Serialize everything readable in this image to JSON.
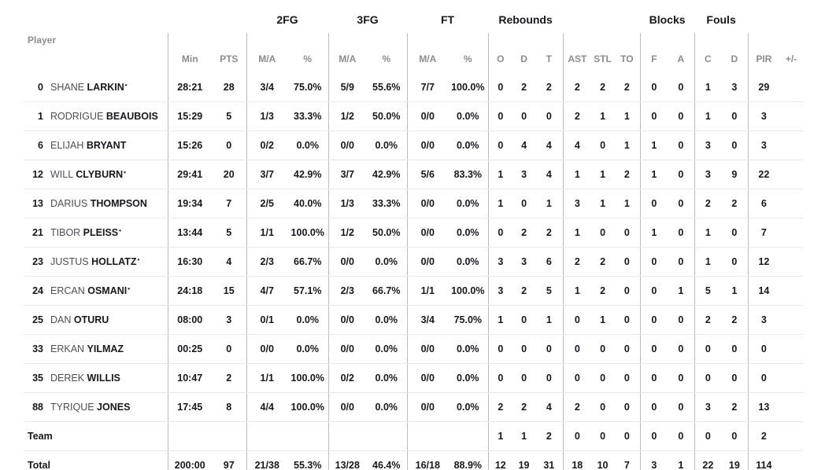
{
  "header": {
    "player_label": "Player",
    "groups": {
      "fg2": "2FG",
      "fg3": "3FG",
      "ft": "FT",
      "rebounds": "Rebounds",
      "blocks": "Blocks",
      "fouls": "Fouls"
    },
    "columns": [
      "Min",
      "PTS",
      "M/A",
      "%",
      "M/A",
      "%",
      "M/A",
      "%",
      "O",
      "D",
      "T",
      "AST",
      "STL",
      "TO",
      "F",
      "A",
      "C",
      "D",
      "PIR",
      "+/-"
    ]
  },
  "starter_glyph": "•",
  "rows": [
    {
      "number": "0",
      "first": "SHANE",
      "last": "LARKIN",
      "starter": true,
      "min": "28:21",
      "pts": "28",
      "fg2_ma": "3/4",
      "fg2_pct": "75.0%",
      "fg3_ma": "5/9",
      "fg3_pct": "55.6%",
      "ft_ma": "7/7",
      "ft_pct": "100.0%",
      "reb_o": "0",
      "reb_d": "2",
      "reb_t": "2",
      "ast": "2",
      "stl": "2",
      "to": "2",
      "blk_f": "0",
      "blk_a": "0",
      "foul_c": "1",
      "foul_d": "3",
      "pir": "29",
      "plus_minus": ""
    },
    {
      "number": "1",
      "first": "RODRIGUE",
      "last": "BEAUBOIS",
      "starter": false,
      "min": "15:29",
      "pts": "5",
      "fg2_ma": "1/3",
      "fg2_pct": "33.3%",
      "fg3_ma": "1/2",
      "fg3_pct": "50.0%",
      "ft_ma": "0/0",
      "ft_pct": "0.0%",
      "reb_o": "0",
      "reb_d": "0",
      "reb_t": "0",
      "ast": "2",
      "stl": "1",
      "to": "1",
      "blk_f": "0",
      "blk_a": "0",
      "foul_c": "1",
      "foul_d": "0",
      "pir": "3",
      "plus_minus": ""
    },
    {
      "number": "6",
      "first": "ELIJAH",
      "last": "BRYANT",
      "starter": false,
      "min": "15:26",
      "pts": "0",
      "fg2_ma": "0/2",
      "fg2_pct": "0.0%",
      "fg3_ma": "0/0",
      "fg3_pct": "0.0%",
      "ft_ma": "0/0",
      "ft_pct": "0.0%",
      "reb_o": "0",
      "reb_d": "4",
      "reb_t": "4",
      "ast": "4",
      "stl": "0",
      "to": "1",
      "blk_f": "1",
      "blk_a": "0",
      "foul_c": "3",
      "foul_d": "0",
      "pir": "3",
      "plus_minus": ""
    },
    {
      "number": "12",
      "first": "WILL",
      "last": "CLYBURN",
      "starter": true,
      "min": "29:41",
      "pts": "20",
      "fg2_ma": "3/7",
      "fg2_pct": "42.9%",
      "fg3_ma": "3/7",
      "fg3_pct": "42.9%",
      "ft_ma": "5/6",
      "ft_pct": "83.3%",
      "reb_o": "1",
      "reb_d": "3",
      "reb_t": "4",
      "ast": "1",
      "stl": "1",
      "to": "2",
      "blk_f": "1",
      "blk_a": "0",
      "foul_c": "3",
      "foul_d": "9",
      "pir": "22",
      "plus_minus": ""
    },
    {
      "number": "13",
      "first": "DARIUS",
      "last": "THOMPSON",
      "starter": false,
      "min": "19:34",
      "pts": "7",
      "fg2_ma": "2/5",
      "fg2_pct": "40.0%",
      "fg3_ma": "1/3",
      "fg3_pct": "33.3%",
      "ft_ma": "0/0",
      "ft_pct": "0.0%",
      "reb_o": "1",
      "reb_d": "0",
      "reb_t": "1",
      "ast": "3",
      "stl": "1",
      "to": "1",
      "blk_f": "0",
      "blk_a": "0",
      "foul_c": "2",
      "foul_d": "2",
      "pir": "6",
      "plus_minus": ""
    },
    {
      "number": "21",
      "first": "TIBOR",
      "last": "PLEISS",
      "starter": true,
      "min": "13:44",
      "pts": "5",
      "fg2_ma": "1/1",
      "fg2_pct": "100.0%",
      "fg3_ma": "1/2",
      "fg3_pct": "50.0%",
      "ft_ma": "0/0",
      "ft_pct": "0.0%",
      "reb_o": "0",
      "reb_d": "2",
      "reb_t": "2",
      "ast": "1",
      "stl": "0",
      "to": "0",
      "blk_f": "1",
      "blk_a": "0",
      "foul_c": "1",
      "foul_d": "0",
      "pir": "7",
      "plus_minus": ""
    },
    {
      "number": "23",
      "first": "JUSTUS",
      "last": "HOLLATZ",
      "starter": true,
      "min": "16:30",
      "pts": "4",
      "fg2_ma": "2/3",
      "fg2_pct": "66.7%",
      "fg3_ma": "0/0",
      "fg3_pct": "0.0%",
      "ft_ma": "0/0",
      "ft_pct": "0.0%",
      "reb_o": "3",
      "reb_d": "3",
      "reb_t": "6",
      "ast": "2",
      "stl": "2",
      "to": "0",
      "blk_f": "0",
      "blk_a": "0",
      "foul_c": "1",
      "foul_d": "0",
      "pir": "12",
      "plus_minus": ""
    },
    {
      "number": "24",
      "first": "ERCAN",
      "last": "OSMANI",
      "starter": true,
      "min": "24:18",
      "pts": "15",
      "fg2_ma": "4/7",
      "fg2_pct": "57.1%",
      "fg3_ma": "2/3",
      "fg3_pct": "66.7%",
      "ft_ma": "1/1",
      "ft_pct": "100.0%",
      "reb_o": "3",
      "reb_d": "2",
      "reb_t": "5",
      "ast": "1",
      "stl": "2",
      "to": "0",
      "blk_f": "0",
      "blk_a": "1",
      "foul_c": "5",
      "foul_d": "1",
      "pir": "14",
      "plus_minus": ""
    },
    {
      "number": "25",
      "first": "DAN",
      "last": "OTURU",
      "starter": false,
      "min": "08:00",
      "pts": "3",
      "fg2_ma": "0/1",
      "fg2_pct": "0.0%",
      "fg3_ma": "0/0",
      "fg3_pct": "0.0%",
      "ft_ma": "3/4",
      "ft_pct": "75.0%",
      "reb_o": "1",
      "reb_d": "0",
      "reb_t": "1",
      "ast": "0",
      "stl": "1",
      "to": "0",
      "blk_f": "0",
      "blk_a": "0",
      "foul_c": "2",
      "foul_d": "2",
      "pir": "3",
      "plus_minus": ""
    },
    {
      "number": "33",
      "first": "ERKAN",
      "last": "YILMAZ",
      "starter": false,
      "min": "00:25",
      "pts": "0",
      "fg2_ma": "0/0",
      "fg2_pct": "0.0%",
      "fg3_ma": "0/0",
      "fg3_pct": "0.0%",
      "ft_ma": "0/0",
      "ft_pct": "0.0%",
      "reb_o": "0",
      "reb_d": "0",
      "reb_t": "0",
      "ast": "0",
      "stl": "0",
      "to": "0",
      "blk_f": "0",
      "blk_a": "0",
      "foul_c": "0",
      "foul_d": "0",
      "pir": "0",
      "plus_minus": ""
    },
    {
      "number": "35",
      "first": "DEREK",
      "last": "WILLIS",
      "starter": false,
      "min": "10:47",
      "pts": "2",
      "fg2_ma": "1/1",
      "fg2_pct": "100.0%",
      "fg3_ma": "0/2",
      "fg3_pct": "0.0%",
      "ft_ma": "0/0",
      "ft_pct": "0.0%",
      "reb_o": "0",
      "reb_d": "0",
      "reb_t": "0",
      "ast": "0",
      "stl": "0",
      "to": "0",
      "blk_f": "0",
      "blk_a": "0",
      "foul_c": "0",
      "foul_d": "0",
      "pir": "0",
      "plus_minus": ""
    },
    {
      "number": "88",
      "first": "TYRIQUE",
      "last": "JONES",
      "starter": false,
      "min": "17:45",
      "pts": "8",
      "fg2_ma": "4/4",
      "fg2_pct": "100.0%",
      "fg3_ma": "0/0",
      "fg3_pct": "0.0%",
      "ft_ma": "0/0",
      "ft_pct": "0.0%",
      "reb_o": "2",
      "reb_d": "2",
      "reb_t": "4",
      "ast": "2",
      "stl": "0",
      "to": "0",
      "blk_f": "0",
      "blk_a": "0",
      "foul_c": "3",
      "foul_d": "2",
      "pir": "13",
      "plus_minus": ""
    },
    {
      "label": "Team",
      "min": "",
      "pts": "",
      "fg2_ma": "",
      "fg2_pct": "",
      "fg3_ma": "",
      "fg3_pct": "",
      "ft_ma": "",
      "ft_pct": "",
      "reb_o": "1",
      "reb_d": "1",
      "reb_t": "2",
      "ast": "0",
      "stl": "0",
      "to": "0",
      "blk_f": "0",
      "blk_a": "0",
      "foul_c": "0",
      "foul_d": "0",
      "pir": "2",
      "plus_minus": ""
    },
    {
      "label": "Total",
      "min": "200:00",
      "pts": "97",
      "fg2_ma": "21/38",
      "fg2_pct": "55.3%",
      "fg3_ma": "13/28",
      "fg3_pct": "46.4%",
      "ft_ma": "16/18",
      "ft_pct": "88.9%",
      "reb_o": "12",
      "reb_d": "19",
      "reb_t": "31",
      "ast": "18",
      "stl": "10",
      "to": "7",
      "blk_f": "3",
      "blk_a": "1",
      "foul_c": "22",
      "foul_d": "19",
      "pir": "114",
      "plus_minus": ""
    }
  ]
}
